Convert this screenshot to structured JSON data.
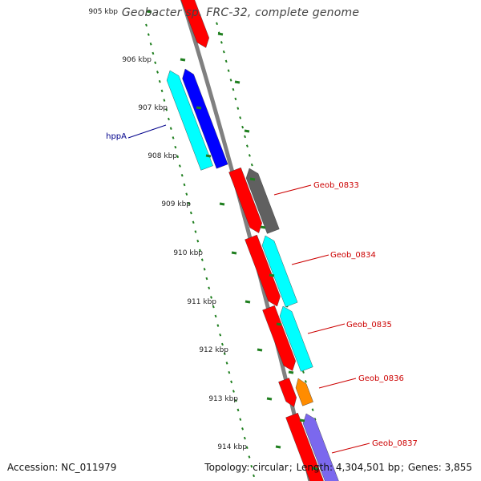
{
  "title": "Geobacter sp. FRC-32, complete genome",
  "footer": {
    "accession_label": "Accession:",
    "accession": "NC_011979",
    "topology_label": "Topology:",
    "topology": "circular",
    "length_label": "Length:",
    "length": "4,304,501 bp",
    "genes_label": "Genes:",
    "genes": "3,855"
  },
  "ruler": {
    "unit": "kbp",
    "ticks": [
      {
        "label": "905 kbp",
        "kbp": 905
      },
      {
        "label": "906 kbp",
        "kbp": 906
      },
      {
        "label": "907 kbp",
        "kbp": 907
      },
      {
        "label": "908 kbp",
        "kbp": 908
      },
      {
        "label": "909 kbp",
        "kbp": 909
      },
      {
        "label": "910 kbp",
        "kbp": 910
      },
      {
        "label": "911 kbp",
        "kbp": 911
      },
      {
        "label": "912 kbp",
        "kbp": 912
      },
      {
        "label": "913 kbp",
        "kbp": 913
      },
      {
        "label": "914 kbp",
        "kbp": 914
      }
    ]
  },
  "gene_labels": [
    {
      "text": "hppA",
      "color": "#00008b"
    },
    {
      "text": "Geob_0833",
      "color": "#cc0000"
    },
    {
      "text": "Geob_0834",
      "color": "#cc0000"
    },
    {
      "text": "Geob_0835",
      "color": "#cc0000"
    },
    {
      "text": "Geob_0836",
      "color": "#cc0000"
    },
    {
      "text": "Geob_0837",
      "color": "#cc0000"
    }
  ],
  "colors": {
    "backbone": "#808080",
    "tick": "#1f7f1f",
    "red": "#ff0000",
    "cyan": "#00ffff",
    "blue": "#0000ff",
    "gray": "#606060",
    "orange": "#ff8c00",
    "purple": "#7b68ee"
  }
}
